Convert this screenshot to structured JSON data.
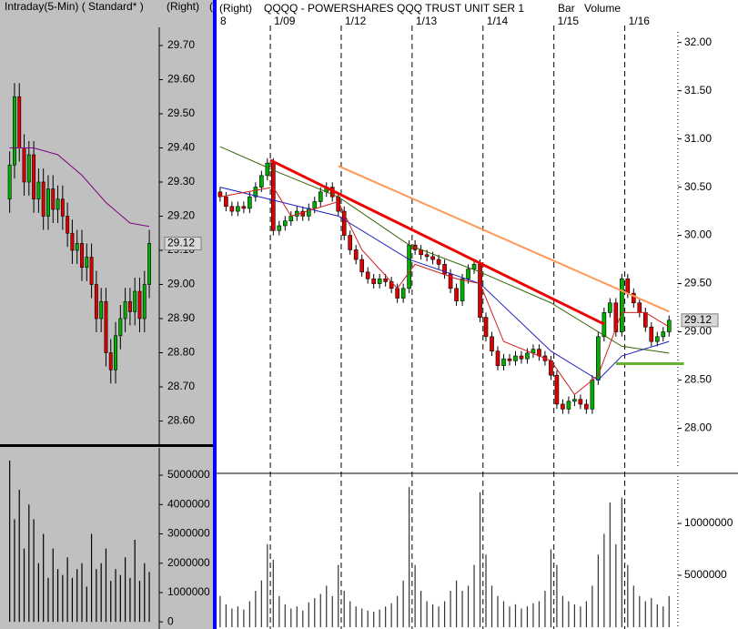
{
  "chart_data": [
    {
      "type": "candlestick",
      "title": "Intraday(5-Min) ( Standard* )",
      "axis_side": "(Right)",
      "header_clip": "(",
      "open": [
        29.25,
        29.35,
        29.55,
        29.4,
        29.3,
        29.38,
        29.25,
        29.3,
        29.2,
        29.28,
        29.22,
        29.25,
        29.2,
        29.15,
        29.1,
        29.12,
        29.05,
        29.08,
        29.0,
        28.9,
        28.95,
        28.8,
        28.75,
        28.85,
        28.9,
        28.95,
        28.92,
        28.98,
        28.9,
        29.0
      ],
      "high": [
        29.39,
        29.59,
        29.59,
        29.44,
        29.42,
        29.42,
        29.34,
        29.34,
        29.32,
        29.32,
        29.29,
        29.29,
        29.24,
        29.19,
        29.16,
        29.16,
        29.12,
        29.12,
        29.04,
        28.99,
        28.99,
        28.84,
        28.89,
        28.94,
        28.99,
        28.99,
        29.02,
        29.02,
        29.04,
        29.16
      ],
      "low": [
        29.21,
        29.31,
        29.36,
        29.26,
        29.26,
        29.21,
        29.21,
        29.16,
        29.16,
        29.18,
        29.18,
        29.16,
        29.11,
        29.06,
        29.06,
        29.01,
        29.01,
        28.96,
        28.86,
        28.86,
        28.76,
        28.71,
        28.71,
        28.81,
        28.86,
        28.88,
        28.88,
        28.86,
        28.86,
        28.96
      ],
      "close": [
        29.35,
        29.55,
        29.4,
        29.3,
        29.38,
        29.25,
        29.3,
        29.2,
        29.28,
        29.22,
        29.25,
        29.2,
        29.15,
        29.1,
        29.12,
        29.05,
        29.08,
        29.0,
        28.9,
        28.95,
        28.8,
        28.75,
        28.85,
        28.9,
        28.95,
        28.92,
        28.98,
        28.9,
        29.0,
        29.12
      ],
      "up_color": "#00b000",
      "down_color": "#e00000",
      "lines": [
        {
          "color": "#800080",
          "x": [
            0,
            5,
            10,
            15,
            20,
            25,
            29
          ],
          "values": [
            29.4,
            29.4,
            29.38,
            29.32,
            29.24,
            29.18,
            29.17
          ]
        }
      ],
      "xlim": [
        -0.5,
        30.5
      ],
      "ylim": [
        28.54,
        29.74
      ],
      "yticks": [
        {
          "value": 29.7,
          "label": "29.70"
        },
        {
          "value": 29.6,
          "label": "29.60"
        },
        {
          "value": 29.5,
          "label": "29.50"
        },
        {
          "value": 29.4,
          "label": "29.40"
        },
        {
          "value": 29.3,
          "label": "29.30"
        },
        {
          "value": 29.2,
          "label": "29.20"
        },
        {
          "value": 29.1,
          "label": "29.10"
        },
        {
          "value": 29.0,
          "label": "29.00"
        },
        {
          "value": 28.9,
          "label": "28.90"
        },
        {
          "value": 28.8,
          "label": "28.80"
        },
        {
          "value": 28.7,
          "label": "28.70"
        },
        {
          "value": 28.6,
          "label": "28.60"
        }
      ],
      "last_price": {
        "value": 29.12,
        "label": "29.12"
      }
    },
    {
      "type": "volume",
      "color": "#000000",
      "values": [
        5500000,
        3500000,
        4500000,
        2500000,
        4000000,
        3500000,
        2000000,
        3000000,
        1500000,
        2500000,
        1800000,
        1600000,
        2200000,
        1500000,
        1800000,
        2000000,
        1200000,
        3000000,
        1800000,
        2000000,
        2500000,
        1400000,
        1800000,
        1600000,
        2200000,
        1500000,
        2800000,
        1400000,
        2000000,
        1700000
      ],
      "xlim": [
        -0.5,
        30.5
      ],
      "ylim": [
        -150000,
        5840000
      ],
      "yticks": [
        0,
        1000000,
        2000000,
        3000000,
        4000000,
        5000000
      ]
    },
    {
      "type": "candlestick",
      "subtitle": "(Right)",
      "title": "QQQQ - POWERSHARES QQQ TRUST UNIT SER 1",
      "labels": [
        "Bar",
        "Volume"
      ],
      "open": [
        30.45,
        30.4,
        30.3,
        30.25,
        30.3,
        30.28,
        30.4,
        30.5,
        30.62,
        30.75,
        30.05,
        30.1,
        30.15,
        30.2,
        30.25,
        30.2,
        30.28,
        30.35,
        30.45,
        30.5,
        30.4,
        30.25,
        30.0,
        29.85,
        29.75,
        29.62,
        29.55,
        29.5,
        29.55,
        29.52,
        29.45,
        29.35,
        29.45,
        29.9,
        29.85,
        29.8,
        29.78,
        29.75,
        29.7,
        29.6,
        29.45,
        29.32,
        29.55,
        29.65,
        29.7,
        29.15,
        28.95,
        28.8,
        28.65,
        28.72,
        28.7,
        28.75,
        28.72,
        28.78,
        28.82,
        28.75,
        28.7,
        28.55,
        28.25,
        28.2,
        28.28,
        28.3,
        28.25,
        28.2,
        28.5,
        28.95,
        29.2,
        29.3,
        29.0,
        29.55,
        29.4,
        29.3,
        29.2,
        29.05,
        28.9,
        28.95,
        29.0
      ],
      "high": [
        30.5,
        30.45,
        30.35,
        30.35,
        30.35,
        30.45,
        30.55,
        30.67,
        30.8,
        30.8,
        30.15,
        30.2,
        30.25,
        30.3,
        30.3,
        30.33,
        30.4,
        30.5,
        30.55,
        30.55,
        30.45,
        30.3,
        30.05,
        29.9,
        29.8,
        29.67,
        29.6,
        29.6,
        29.6,
        29.57,
        29.5,
        29.5,
        29.95,
        29.95,
        29.9,
        29.85,
        29.83,
        29.8,
        29.75,
        29.65,
        29.5,
        29.6,
        29.7,
        29.75,
        29.75,
        29.2,
        29.0,
        28.85,
        28.77,
        28.77,
        28.8,
        28.8,
        28.83,
        28.87,
        28.87,
        28.8,
        28.75,
        28.6,
        28.3,
        28.33,
        28.35,
        28.35,
        28.3,
        28.55,
        29.0,
        29.25,
        29.35,
        29.35,
        29.6,
        29.6,
        29.45,
        29.35,
        29.25,
        29.1,
        29.0,
        29.05,
        29.17
      ],
      "low": [
        30.35,
        30.25,
        30.2,
        30.2,
        30.23,
        30.23,
        30.35,
        30.45,
        30.57,
        30.0,
        30.0,
        30.05,
        30.1,
        30.15,
        30.15,
        30.15,
        30.23,
        30.3,
        30.4,
        30.35,
        30.2,
        29.95,
        29.8,
        29.7,
        29.57,
        29.5,
        29.45,
        29.45,
        29.47,
        29.4,
        29.3,
        29.3,
        29.4,
        29.8,
        29.75,
        29.73,
        29.7,
        29.65,
        29.55,
        29.4,
        29.27,
        29.27,
        29.5,
        29.6,
        29.1,
        28.9,
        28.75,
        28.6,
        28.6,
        28.65,
        28.65,
        28.67,
        28.67,
        28.73,
        28.7,
        28.65,
        28.5,
        28.2,
        28.15,
        28.15,
        28.23,
        28.2,
        28.15,
        28.15,
        28.45,
        28.9,
        29.15,
        28.95,
        28.95,
        29.35,
        29.25,
        29.15,
        29.0,
        28.85,
        28.85,
        28.9,
        28.95
      ],
      "close": [
        30.4,
        30.3,
        30.25,
        30.3,
        30.28,
        30.4,
        30.5,
        30.62,
        30.75,
        30.05,
        30.1,
        30.15,
        30.2,
        30.25,
        30.2,
        30.28,
        30.35,
        30.45,
        30.5,
        30.4,
        30.25,
        30.0,
        29.85,
        29.75,
        29.62,
        29.55,
        29.5,
        29.55,
        29.52,
        29.45,
        29.35,
        29.45,
        29.9,
        29.85,
        29.8,
        29.78,
        29.75,
        29.7,
        29.6,
        29.45,
        29.32,
        29.55,
        29.65,
        29.7,
        29.15,
        28.95,
        28.8,
        28.65,
        28.72,
        28.7,
        28.75,
        28.72,
        28.78,
        28.82,
        28.75,
        28.7,
        28.55,
        28.25,
        28.2,
        28.28,
        28.3,
        28.25,
        28.2,
        28.5,
        28.95,
        29.2,
        29.3,
        29.0,
        29.55,
        29.4,
        29.3,
        29.2,
        29.05,
        28.9,
        28.95,
        29.0,
        29.12
      ],
      "up_color": "#00b000",
      "down_color": "#e00000",
      "lines": [
        {
          "color": "#336600",
          "x": [
            0,
            10,
            20,
            32,
            44,
            56,
            68,
            76
          ],
          "values": [
            30.92,
            30.65,
            30.4,
            29.9,
            29.62,
            29.3,
            28.85,
            28.78
          ]
        },
        {
          "color": "#2020c0",
          "x": [
            0,
            10,
            20,
            32,
            44,
            56,
            64,
            68,
            76
          ],
          "values": [
            30.5,
            30.35,
            30.2,
            29.75,
            29.5,
            28.8,
            28.5,
            28.75,
            28.9
          ]
        },
        {
          "color": "#d02020",
          "x": [
            0,
            9,
            12,
            20,
            24,
            30,
            33,
            40,
            44,
            48,
            56,
            60,
            64,
            68,
            72,
            76
          ],
          "values": [
            30.4,
            30.5,
            30.2,
            30.35,
            29.85,
            29.45,
            29.7,
            29.55,
            29.5,
            28.9,
            28.7,
            28.35,
            28.55,
            29.2,
            29.2,
            29.05
          ]
        }
      ],
      "trendlines": [
        {
          "color": "#ee0000",
          "width": 3,
          "x": [
            8.5,
            65
          ],
          "values": [
            30.78,
            29.08
          ]
        },
        {
          "color": "#ff9955",
          "width": 2,
          "x": [
            20,
            76
          ],
          "values": [
            30.72,
            29.21
          ]
        },
        {
          "color": "#66b032",
          "width": 3,
          "x": [
            67,
            78.5
          ],
          "values": [
            28.67,
            28.67
          ]
        }
      ],
      "xlim": [
        -0.6,
        77.5
      ],
      "ylim": [
        27.58,
        32.11
      ],
      "xticks": [
        {
          "value": -1,
          "label": "8"
        },
        {
          "value": 8.5,
          "label": "1/09"
        },
        {
          "value": 20.5,
          "label": "1/12"
        },
        {
          "value": 32.5,
          "label": "1/13"
        },
        {
          "value": 44.5,
          "label": "1/14"
        },
        {
          "value": 56.5,
          "label": "1/15"
        },
        {
          "value": 68.5,
          "label": "1/16"
        }
      ],
      "yticks": [
        {
          "value": 32,
          "label": "32.00"
        },
        {
          "value": 31.5,
          "label": "31.50"
        },
        {
          "value": 31,
          "label": "31.00"
        },
        {
          "value": 30.5,
          "label": "30.50"
        },
        {
          "value": 30,
          "label": "30.00"
        },
        {
          "value": 29.5,
          "label": "29.50"
        },
        {
          "value": 29,
          "label": "29.00"
        },
        {
          "value": 28.5,
          "label": "28.50"
        },
        {
          "value": 28,
          "label": "28.00"
        }
      ],
      "last_price": {
        "value": 29.12,
        "label": "29.12"
      }
    },
    {
      "type": "volume",
      "color": "#333333",
      "values": [
        3000000,
        2200000,
        1800000,
        2000000,
        1700000,
        2500000,
        3500000,
        4500000,
        8000000,
        6500000,
        3000000,
        2200000,
        1800000,
        2000000,
        1600000,
        2400000,
        2800000,
        3200000,
        4000000,
        3000000,
        6000000,
        3500000,
        2500000,
        2000000,
        1800000,
        1600000,
        1500000,
        1700000,
        2000000,
        2300000,
        3000000,
        4500000,
        13500000,
        6000000,
        3500000,
        2500000,
        2200000,
        2000000,
        2500000,
        3500000,
        4500000,
        3500000,
        4000000,
        6000000,
        13000000,
        7000000,
        4000000,
        3000000,
        2500000,
        2000000,
        2200000,
        1800000,
        2000000,
        2300000,
        2500000,
        3500000,
        7500000,
        6000000,
        3000000,
        2500000,
        2200000,
        2000000,
        2500000,
        4000000,
        7000000,
        9000000,
        12000000,
        8000000,
        12500000,
        6000000,
        4000000,
        3000000,
        2500000,
        2800000,
        2200000,
        2000000,
        3000000
      ],
      "xlim": [
        -0.6,
        77.5
      ],
      "ylim": [
        0,
        14560000
      ],
      "yticks": [
        5000000,
        10000000
      ]
    }
  ]
}
